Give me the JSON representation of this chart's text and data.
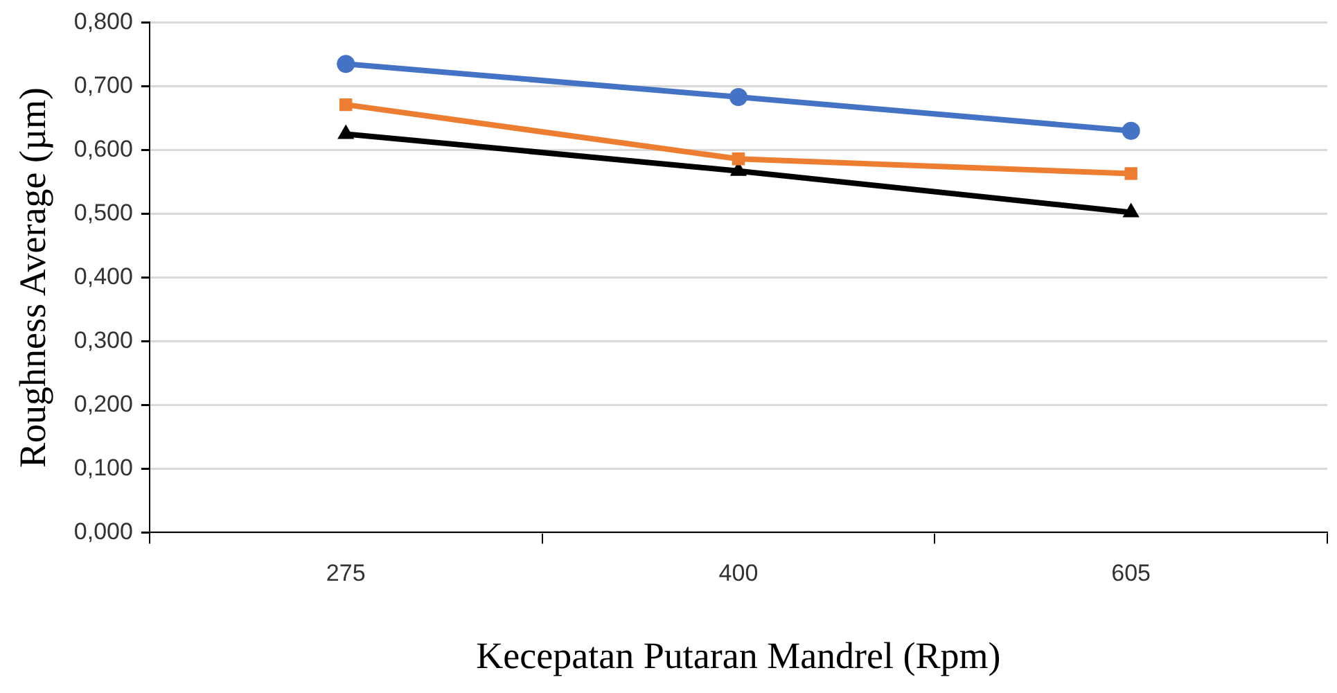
{
  "chart_data": {
    "type": "line",
    "xlabel": "Kecepatan Putaran Mandrel (Rpm)",
    "ylabel": "Roughness Average (µm)",
    "categories": [
      "275",
      "400",
      "605"
    ],
    "series": [
      {
        "color": "#4472c4",
        "marker": "circle",
        "values": [
          0.735,
          0.683,
          0.63
        ]
      },
      {
        "color": "#ed7d31",
        "marker": "square",
        "values": [
          0.671,
          0.586,
          0.563
        ]
      },
      {
        "color": "#000000",
        "marker": "triangle",
        "values": [
          0.625,
          0.567,
          0.502
        ]
      }
    ],
    "ylim": [
      0,
      0.8
    ],
    "yticks": [
      {
        "value": 0,
        "label": "0,000"
      },
      {
        "value": 0.1,
        "label": "0,100"
      },
      {
        "value": 0.2,
        "label": "0,200"
      },
      {
        "value": 0.3,
        "label": "0,300"
      },
      {
        "value": 0.4,
        "label": "0,400"
      },
      {
        "value": 0.5,
        "label": "0,500"
      },
      {
        "value": 0.6,
        "label": "0,600"
      },
      {
        "value": 0.7,
        "label": "0,700"
      },
      {
        "value": 0.8,
        "label": "0,800"
      }
    ],
    "grid": "y",
    "legend": false,
    "line_style": "solid"
  }
}
